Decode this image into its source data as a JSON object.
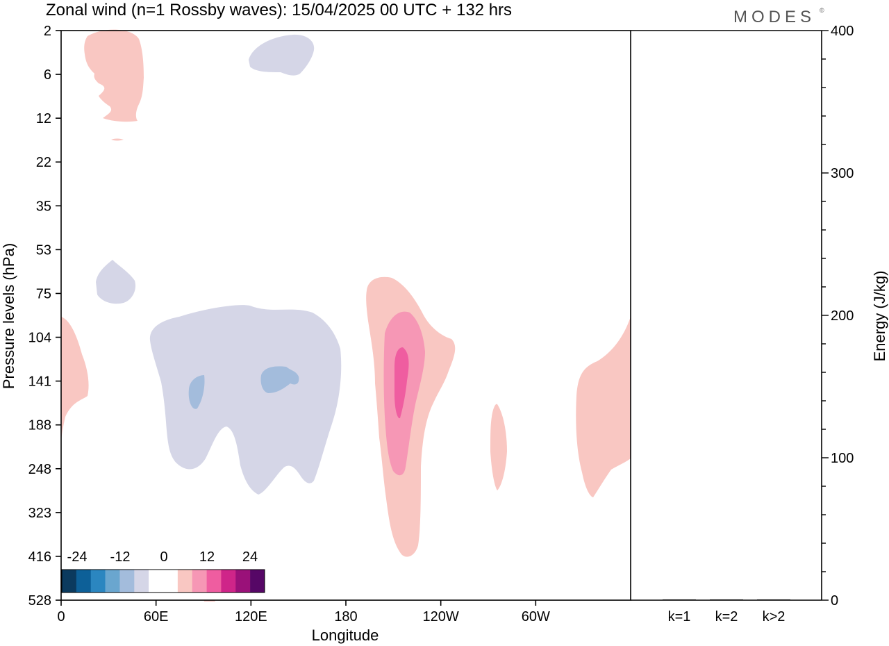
{
  "header": {
    "title": "Zonal wind (n=1 Rossby waves):  15/04/2025  00 UTC  + 132 hrs",
    "logo": "MODES",
    "logo_mark": "©"
  },
  "colors": {
    "neg": [
      "#0b3a5e",
      "#0d6098",
      "#2b86c0",
      "#6aa6cf",
      "#a3bcdc",
      "#d5d6e7"
    ],
    "zero": "#ffffff",
    "pos": [
      "#f9c7c2",
      "#f697b5",
      "#ef5da0",
      "#cf2589",
      "#9a1179",
      "#560766"
    ]
  },
  "chart_data": [
    {
      "type": "heatmap",
      "title": "Zonal wind (n=1 Rossby waves):  15/04/2025  00 UTC  + 132 hrs",
      "xlabel": "Longitude",
      "ylabel": "Pressure levels (hPa)",
      "x_ticks": [
        "0",
        "60E",
        "120E",
        "180",
        "120W",
        "60W"
      ],
      "y_ticks": [
        "2",
        "6",
        "12",
        "22",
        "35",
        "53",
        "75",
        "104",
        "141",
        "188",
        "248",
        "323",
        "416",
        "528"
      ],
      "colorbar": {
        "labels": [
          "-24",
          "-12",
          "0",
          "12",
          "24"
        ],
        "levels": [
          -24,
          -20,
          -16,
          -12,
          -8,
          -4,
          0,
          4,
          8,
          12,
          16,
          20,
          24,
          28
        ]
      },
      "regions": [
        {
          "lon": 30,
          "p": 6,
          "value": 4
        },
        {
          "lon": 135,
          "p": 5,
          "value": -4
        },
        {
          "lon": 35,
          "p": 75,
          "value": -4
        },
        {
          "lon": 95,
          "p": 141,
          "value": -4
        },
        {
          "lon": 85,
          "p": 150,
          "value": -8
        },
        {
          "lon": 137,
          "p": 138,
          "value": -8
        },
        {
          "lon": 0,
          "p": 141,
          "value": 4
        },
        {
          "lon": 212,
          "p": 160,
          "value": 4
        },
        {
          "lon": 212,
          "p": 160,
          "value": 8
        },
        {
          "lon": 214,
          "p": 141,
          "value": 12
        },
        {
          "lon": 278,
          "p": 220,
          "value": 4
        },
        {
          "lon": 345,
          "p": 188,
          "value": 4
        }
      ]
    },
    {
      "type": "bar",
      "categories": [
        "k=1",
        "k=2",
        "k>2"
      ],
      "values": [
        0.5,
        0.5,
        0.5
      ],
      "ylabel": "Energy (J/kg)",
      "ylim": [
        0,
        400
      ],
      "y_ticks": [
        "0",
        "100",
        "200",
        "300",
        "400"
      ]
    }
  ]
}
